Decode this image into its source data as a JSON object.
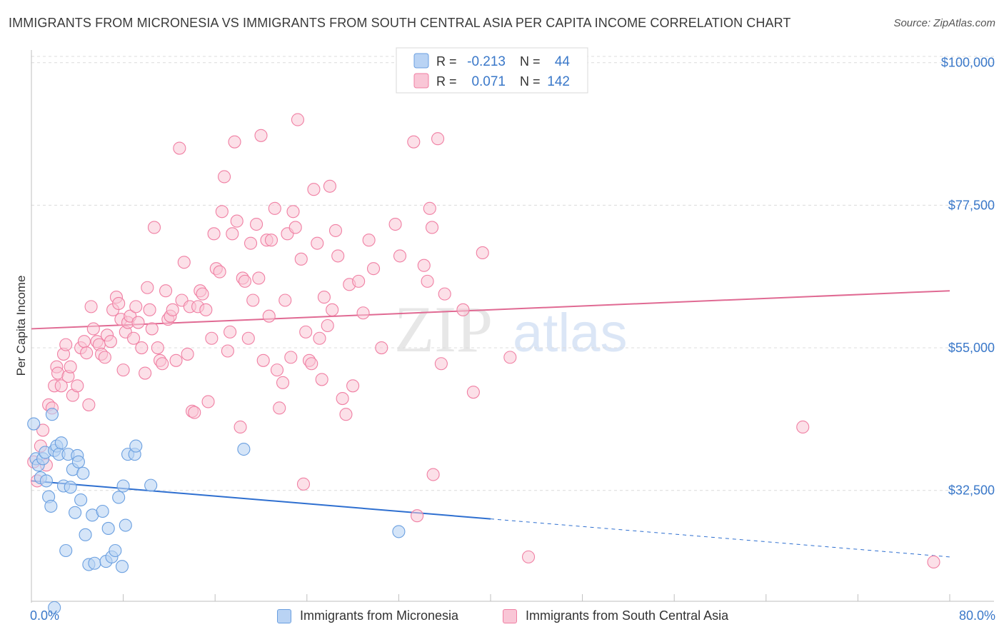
{
  "title": "IMMIGRANTS FROM MICRONESIA VS IMMIGRANTS FROM SOUTH CENTRAL ASIA PER CAPITA INCOME CORRELATION CHART",
  "source": "Source: ZipAtlas.com",
  "watermark": {
    "zip": "ZIP",
    "atlas": "atlas"
  },
  "colors": {
    "blue": "#6a9fe0",
    "blue_fill": "#b9d3f4",
    "blue_line": "#2e6fd0",
    "pink": "#f07fa3",
    "pink_fill": "#f9c6d6",
    "pink_line": "#e06a93",
    "axis_text": "#3a78c9",
    "grid": "#dcdcdc"
  },
  "legend_top": {
    "rows": [
      {
        "r_label": "R =",
        "r_value": "-0.213",
        "n_label": "N =",
        "n_value": "44"
      },
      {
        "r_label": "R =",
        "r_value": "0.071",
        "n_label": "N =",
        "n_value": "142"
      }
    ]
  },
  "legend_bottom": {
    "series1": "Immigrants from Micronesia",
    "series2": "Immigrants from South Central Asia"
  },
  "x_tick_labels": {
    "left": "0.0%",
    "right": "80.0%"
  },
  "chart_data": {
    "type": "scatter",
    "title": "IMMIGRANTS FROM MICRONESIA VS IMMIGRANTS FROM SOUTH CENTRAL ASIA PER CAPITA INCOME CORRELATION CHART",
    "xlabel": "",
    "ylabel": "Per Capita Income",
    "xlim": [
      0,
      80
    ],
    "ylim": [
      15000,
      102000
    ],
    "y_ticks": [
      {
        "value": 32500,
        "label": "$32,500"
      },
      {
        "value": 55000,
        "label": "$55,000"
      },
      {
        "value": 77500,
        "label": "$77,500"
      },
      {
        "value": 100000,
        "label": "$100,000"
      }
    ],
    "grid": true,
    "series": [
      {
        "name": "Immigrants from Micronesia",
        "color": "blue",
        "R": -0.213,
        "N": 44,
        "trend": {
          "x0": 0,
          "y0": 34000,
          "x1": 40,
          "y1": 28000,
          "dash_to_x": 80,
          "dash_to_y": 22000
        },
        "points": [
          [
            0.2,
            43000
          ],
          [
            0.4,
            37500
          ],
          [
            0.6,
            36500
          ],
          [
            0.8,
            34500
          ],
          [
            1.0,
            37500
          ],
          [
            1.2,
            38500
          ],
          [
            1.3,
            34000
          ],
          [
            1.5,
            31500
          ],
          [
            1.7,
            30000
          ],
          [
            1.8,
            44500
          ],
          [
            2.0,
            38800
          ],
          [
            2.2,
            39500
          ],
          [
            2.4,
            38200
          ],
          [
            2.6,
            40000
          ],
          [
            2.8,
            33200
          ],
          [
            3.0,
            23000
          ],
          [
            3.2,
            38200
          ],
          [
            3.4,
            33000
          ],
          [
            3.6,
            35800
          ],
          [
            3.8,
            29000
          ],
          [
            4.0,
            38000
          ],
          [
            4.1,
            37000
          ],
          [
            4.3,
            31000
          ],
          [
            4.5,
            35200
          ],
          [
            4.7,
            25500
          ],
          [
            5.0,
            20800
          ],
          [
            5.3,
            28600
          ],
          [
            5.5,
            21000
          ],
          [
            6.2,
            29200
          ],
          [
            6.5,
            21300
          ],
          [
            6.7,
            26500
          ],
          [
            7.0,
            22000
          ],
          [
            7.3,
            23000
          ],
          [
            7.6,
            31400
          ],
          [
            7.9,
            20500
          ],
          [
            8.0,
            33200
          ],
          [
            8.2,
            27000
          ],
          [
            8.4,
            38200
          ],
          [
            9.0,
            38200
          ],
          [
            9.1,
            39500
          ],
          [
            10.4,
            33300
          ],
          [
            2.0,
            14000
          ],
          [
            18.5,
            39000
          ],
          [
            32.0,
            26000
          ]
        ]
      },
      {
        "name": "Immigrants from South Central Asia",
        "color": "pink",
        "R": 0.071,
        "N": 142,
        "trend": {
          "x0": 0,
          "y0": 58000,
          "x1": 80,
          "y1": 64000
        },
        "points": [
          [
            0.2,
            37000
          ],
          [
            0.5,
            34000
          ],
          [
            0.8,
            39500
          ],
          [
            1.0,
            42000
          ],
          [
            1.3,
            36500
          ],
          [
            1.5,
            46000
          ],
          [
            1.8,
            45500
          ],
          [
            2.0,
            49000
          ],
          [
            2.2,
            52000
          ],
          [
            2.3,
            51000
          ],
          [
            2.6,
            49000
          ],
          [
            2.8,
            54000
          ],
          [
            3.0,
            55500
          ],
          [
            3.2,
            50500
          ],
          [
            3.4,
            52000
          ],
          [
            3.6,
            47500
          ],
          [
            4.0,
            49000
          ],
          [
            4.3,
            55000
          ],
          [
            4.6,
            56000
          ],
          [
            4.8,
            54200
          ],
          [
            5.0,
            46000
          ],
          [
            5.2,
            61500
          ],
          [
            5.4,
            58000
          ],
          [
            5.7,
            56000
          ],
          [
            5.9,
            55500
          ],
          [
            6.1,
            54000
          ],
          [
            6.4,
            53500
          ],
          [
            6.6,
            57000
          ],
          [
            6.9,
            56000
          ],
          [
            7.1,
            61000
          ],
          [
            7.4,
            63000
          ],
          [
            7.6,
            62000
          ],
          [
            7.8,
            59500
          ],
          [
            8.0,
            51500
          ],
          [
            8.2,
            57500
          ],
          [
            8.4,
            59000
          ],
          [
            8.6,
            60000
          ],
          [
            8.9,
            56500
          ],
          [
            9.1,
            61500
          ],
          [
            9.3,
            59000
          ],
          [
            9.6,
            55000
          ],
          [
            9.9,
            51000
          ],
          [
            10.1,
            64500
          ],
          [
            10.3,
            61000
          ],
          [
            10.5,
            58000
          ],
          [
            10.7,
            74000
          ],
          [
            11.0,
            55000
          ],
          [
            11.2,
            53000
          ],
          [
            11.4,
            52500
          ],
          [
            11.7,
            64000
          ],
          [
            11.9,
            59500
          ],
          [
            12.1,
            60000
          ],
          [
            12.3,
            61000
          ],
          [
            12.6,
            53000
          ],
          [
            12.9,
            86500
          ],
          [
            13.1,
            62500
          ],
          [
            13.3,
            68500
          ],
          [
            13.6,
            54000
          ],
          [
            13.8,
            61500
          ],
          [
            14.0,
            45000
          ],
          [
            14.2,
            44800
          ],
          [
            14.5,
            61500
          ],
          [
            14.7,
            64000
          ],
          [
            14.9,
            63500
          ],
          [
            15.2,
            61000
          ],
          [
            15.4,
            46500
          ],
          [
            15.7,
            56500
          ],
          [
            15.9,
            73000
          ],
          [
            16.1,
            67500
          ],
          [
            16.4,
            67000
          ],
          [
            16.6,
            76500
          ],
          [
            16.8,
            82000
          ],
          [
            17.1,
            54500
          ],
          [
            17.3,
            57500
          ],
          [
            17.5,
            73000
          ],
          [
            17.7,
            87500
          ],
          [
            17.9,
            75000
          ],
          [
            18.2,
            42500
          ],
          [
            18.4,
            66000
          ],
          [
            18.6,
            65500
          ],
          [
            18.9,
            56500
          ],
          [
            19.1,
            71500
          ],
          [
            19.3,
            62500
          ],
          [
            19.6,
            74500
          ],
          [
            19.8,
            66000
          ],
          [
            20.0,
            88500
          ],
          [
            20.2,
            53000
          ],
          [
            20.5,
            72000
          ],
          [
            20.7,
            60000
          ],
          [
            20.9,
            72000
          ],
          [
            21.2,
            77000
          ],
          [
            21.4,
            51500
          ],
          [
            21.6,
            45500
          ],
          [
            21.9,
            49500
          ],
          [
            22.1,
            62500
          ],
          [
            22.3,
            73000
          ],
          [
            22.6,
            53500
          ],
          [
            22.8,
            76500
          ],
          [
            23.0,
            74000
          ],
          [
            23.2,
            91000
          ],
          [
            23.5,
            69000
          ],
          [
            23.7,
            33500
          ],
          [
            23.9,
            57500
          ],
          [
            24.2,
            53000
          ],
          [
            24.4,
            52500
          ],
          [
            24.6,
            80000
          ],
          [
            24.9,
            71500
          ],
          [
            25.1,
            56500
          ],
          [
            25.3,
            50000
          ],
          [
            25.5,
            63000
          ],
          [
            25.8,
            58500
          ],
          [
            26.0,
            80500
          ],
          [
            26.2,
            61000
          ],
          [
            26.5,
            73500
          ],
          [
            26.7,
            69500
          ],
          [
            27.1,
            47000
          ],
          [
            27.4,
            44500
          ],
          [
            27.7,
            65000
          ],
          [
            28.0,
            49000
          ],
          [
            28.5,
            65500
          ],
          [
            28.9,
            60500
          ],
          [
            29.4,
            72000
          ],
          [
            29.8,
            67500
          ],
          [
            30.5,
            55000
          ],
          [
            31.7,
            74500
          ],
          [
            32.1,
            69500
          ],
          [
            33.3,
            87500
          ],
          [
            33.6,
            28500
          ],
          [
            34.2,
            68000
          ],
          [
            34.5,
            65500
          ],
          [
            34.7,
            77000
          ],
          [
            34.9,
            74000
          ],
          [
            35.0,
            35000
          ],
          [
            35.4,
            88000
          ],
          [
            35.7,
            52500
          ],
          [
            36.0,
            63500
          ],
          [
            37.6,
            61000
          ],
          [
            38.5,
            48000
          ],
          [
            39.3,
            70000
          ],
          [
            41.7,
            53500
          ],
          [
            43.3,
            22000
          ],
          [
            67.2,
            42500
          ],
          [
            78.6,
            21200
          ]
        ]
      }
    ]
  }
}
